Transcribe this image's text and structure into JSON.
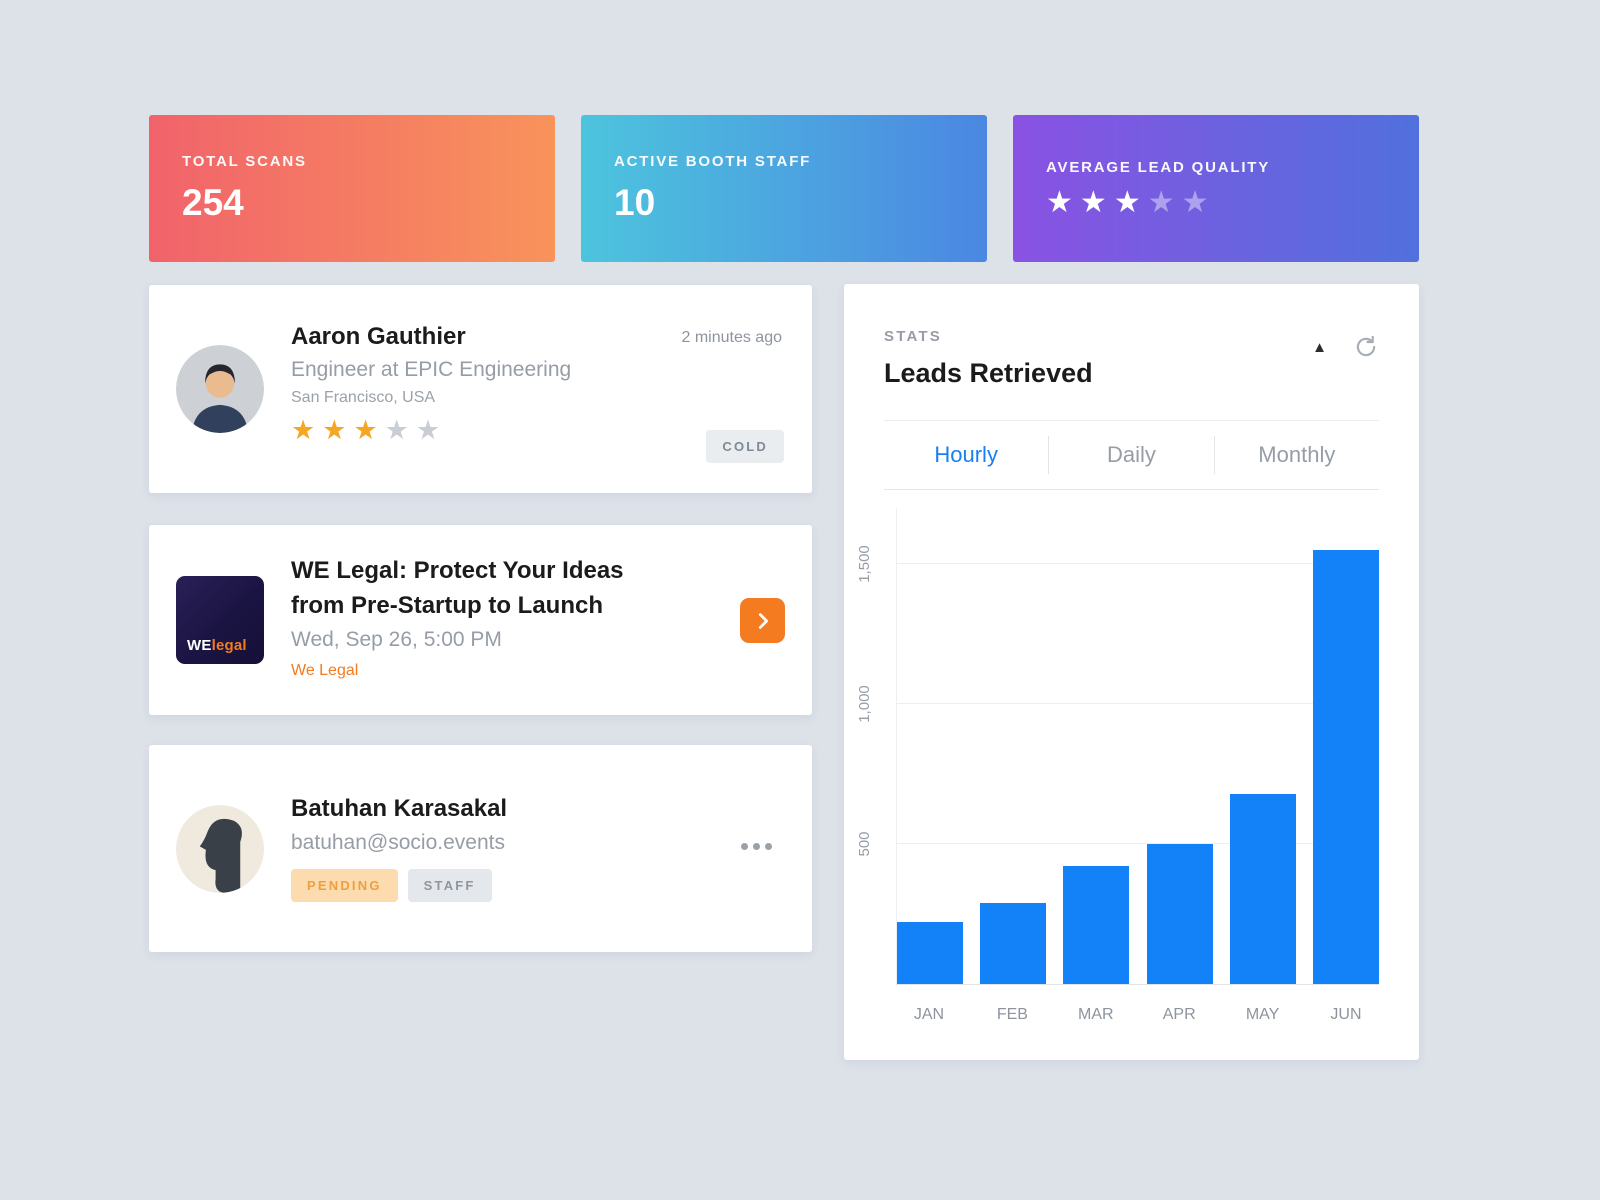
{
  "stat_cards": [
    {
      "label": "TOTAL SCANS",
      "value": "254",
      "gradient_from": "#f1636b",
      "gradient_to": "#f8935b"
    },
    {
      "label": "ACTIVE BOOTH STAFF",
      "value": "10",
      "gradient_from": "#4dc4dd",
      "gradient_to": "#4b87e2"
    },
    {
      "label": "AVERAGE LEAD QUALITY",
      "rating": 3,
      "max_rating": 5,
      "gradient_from": "#8a52e2",
      "gradient_to": "#5170de"
    }
  ],
  "lead_card": {
    "name": "Aaron Gauthier",
    "title": "Engineer at EPIC Engineering",
    "location": "San Francisco, USA",
    "timestamp": "2 minutes ago",
    "rating": 3,
    "max_rating": 5,
    "status_badge": "COLD"
  },
  "event_card": {
    "title": "WE Legal: Protect Your Ideas from Pre-Startup to Launch",
    "datetime": "Wed, Sep 26, 5:00 PM",
    "organizer": "We Legal",
    "logo": {
      "word1": "WE",
      "word2": "legal"
    }
  },
  "staff_card": {
    "name": "Batuhan Karasakal",
    "email": "batuhan@socio.events",
    "badges": [
      "PENDING",
      "STAFF"
    ]
  },
  "stats_card": {
    "eyebrow": "STATS",
    "title": "Leads Retrieved",
    "tabs": [
      "Hourly",
      "Daily",
      "Monthly"
    ],
    "active_tab": "Hourly",
    "icons": {
      "sort": "▲"
    },
    "chart_data": {
      "type": "bar",
      "title": "Leads Retrieved",
      "categories": [
        "JAN",
        "FEB",
        "MAR",
        "APR",
        "MAY",
        "JUN"
      ],
      "values": [
        220,
        290,
        420,
        500,
        680,
        1550
      ],
      "yticks": [
        "500",
        "1,000",
        "1,500"
      ],
      "ylim": [
        0,
        1700
      ],
      "ymax": 1700,
      "bar_color": "#1382f9",
      "grid": true,
      "legend": "none"
    }
  },
  "colors": {
    "accent_orange": "#f47b20",
    "accent_blue": "#1a7ff5",
    "gold_star": "#f5a623"
  }
}
